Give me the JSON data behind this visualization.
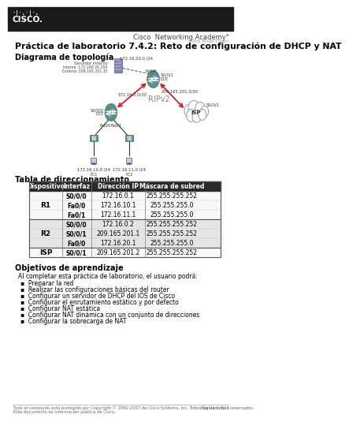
{
  "title": "Práctica de laboratorio 7.4.2: Reto de configuración de DHCP y NAT",
  "header_bg": "#1a1a1a",
  "academy_text": "Cisco  Networking Academy°",
  "academy_sub": "Mind Wide Open",
  "section1": "Diagrama de topología",
  "section2": "Tabla de direccionamiento",
  "section3": "Objetivos de aprendizaje",
  "section3_intro": "Al completar esta práctica de laboratorio, el usuario podrá:",
  "objectives": [
    "Preparar la red",
    "Realizar las configuraciones básicas del router",
    "Configurar un servidor de DHCP del IOS de Cisco",
    "Configurar el enrutamiento estático y por defecto",
    "Configurar NAT estática",
    "Configurar NAT dinámica con un conjunto de direcciones",
    "Configurar la sobrecarga de NAT"
  ],
  "footer_text1": "Todo el contenido está protegido por Copyright © 1992-2007 de Cisco Systems, Inc. Todos los derechos reservados.",
  "footer_text2": "Este documento es información pública de Cisco.",
  "footer_right": "Página 1 de 3",
  "table_headers": [
    "Dispositivo",
    "Interfaz",
    "Dirección IP",
    "Máscara de subred"
  ],
  "table_data": [
    [
      "R1",
      "S0/0/0",
      "172.16.0.1",
      "255.255.255.252"
    ],
    [
      "R1",
      "Fa0/0",
      "172.16.10.1",
      "255.255.255.0"
    ],
    [
      "R1",
      "Fa0/1",
      "172.16.11.1",
      "255.255.255.0"
    ],
    [
      "R2",
      "S0/0/0",
      "172.16.0.2",
      "255.255.255.252"
    ],
    [
      "R2",
      "S0/0/1",
      "209.165.201.1",
      "255.255.255.252"
    ],
    [
      "R2",
      "Fa0/0",
      "172.16.20.1",
      "255.255.255.0"
    ],
    [
      "ISP",
      "S0/0/1",
      "209.165.201.2",
      "255.255.255.252"
    ]
  ],
  "bg_color": "#ffffff",
  "table_header_bg": "#2a2a2a",
  "table_header_fg": "#ffffff"
}
